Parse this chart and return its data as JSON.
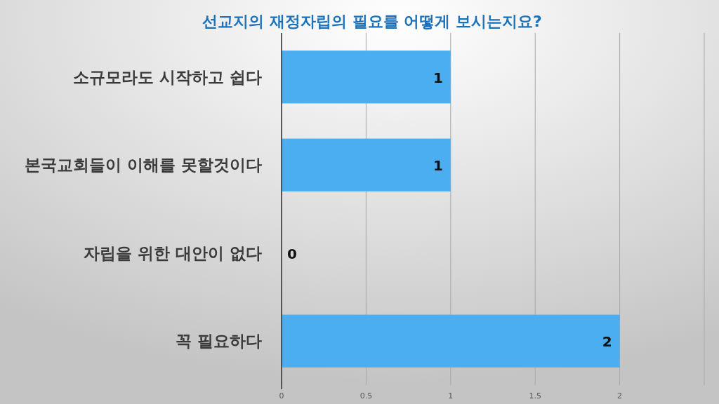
{
  "chart_data": {
    "type": "bar",
    "orientation": "horizontal",
    "title": "선교지의 재정자립의 필요를 어떻게 보시는지요?",
    "categories": [
      "소규모라도 시작하고 쉽다",
      "본국교회들이 이해를 못할것이다",
      "자립을 위한 대안이 없다",
      "꼭 필요하다"
    ],
    "values": [
      1,
      1,
      0,
      2
    ],
    "color": "#4baef0",
    "xlim": [
      0,
      2.5
    ],
    "xticks": [
      0,
      0.5,
      1,
      1.5,
      2,
      {
        "value": 2.5,
        "label": null
      }
    ],
    "grid": "x",
    "data_labels": true
  }
}
